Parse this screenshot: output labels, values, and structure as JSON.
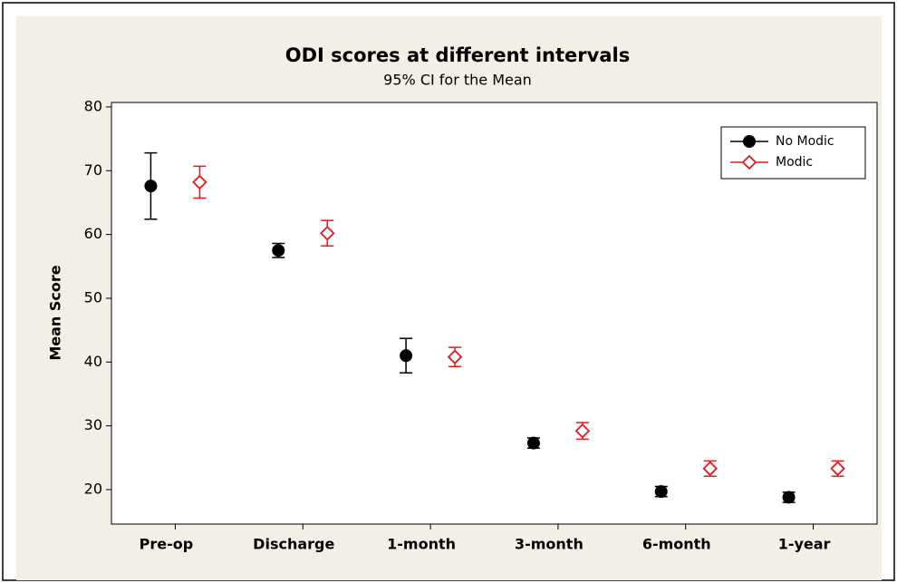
{
  "chart_data": {
    "type": "interval",
    "title": "ODI scores at different intervals",
    "subtitle": "95% CI for the Mean",
    "y_label": "Mean Score",
    "categories": [
      "Pre-op",
      "Discharge",
      "1-month",
      "3-month",
      "6-month",
      "1-year"
    ],
    "series": [
      {
        "name": "No Modic",
        "color": "#000000",
        "marker": "circle",
        "values": [
          67.6,
          57.5,
          41.0,
          27.3,
          19.7,
          18.8
        ],
        "errors": [
          5.2,
          1.1,
          2.7,
          0.8,
          0.8,
          0.8
        ]
      },
      {
        "name": "Modic",
        "color": "#e8191d",
        "marker": "diamond",
        "values": [
          68.2,
          60.2,
          40.8,
          29.2,
          23.3,
          23.3
        ],
        "errors": [
          2.5,
          2.0,
          1.5,
          1.3,
          1.2,
          1.2
        ]
      }
    ],
    "ylim": [
      14.6,
      80.7
    ],
    "yticks": [
      20,
      30,
      40,
      50,
      60,
      70,
      80
    ],
    "legend": "upper right"
  }
}
